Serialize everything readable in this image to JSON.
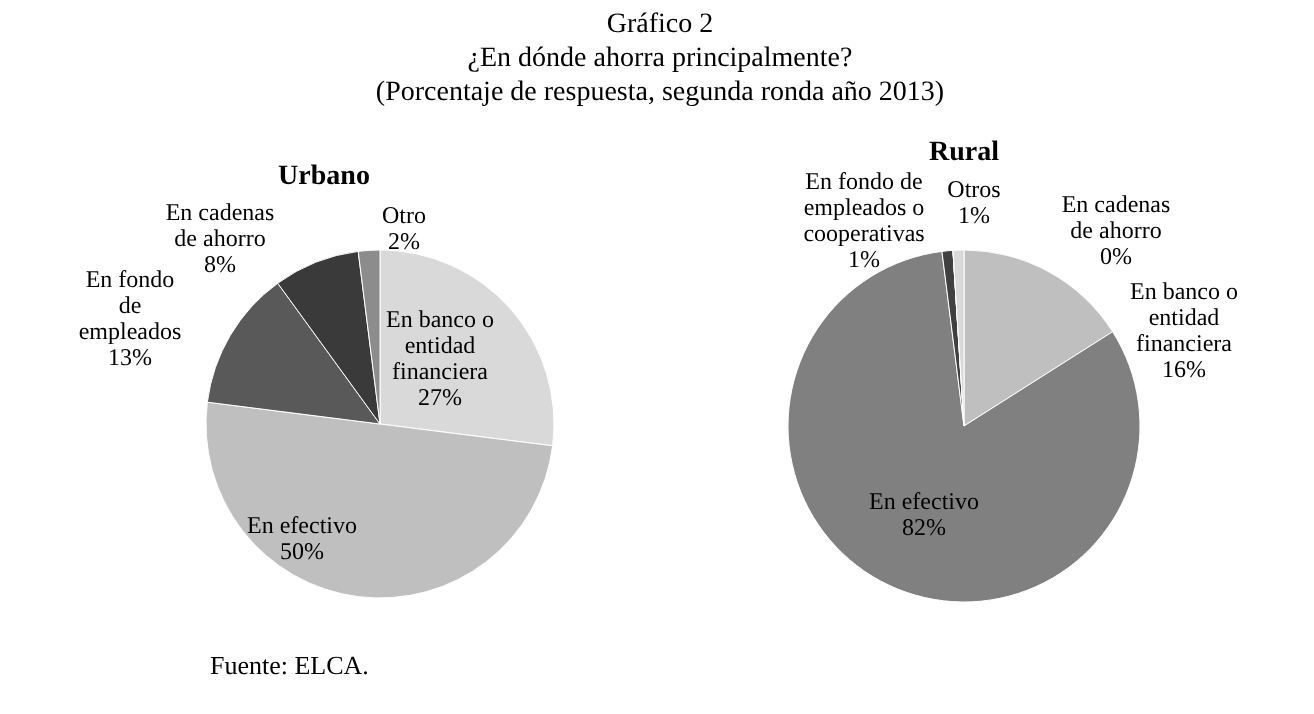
{
  "chart_data": [
    {
      "type": "pie",
      "title": "Urbano",
      "annotations": [
        "Gráfico 2",
        "¿En dónde ahorra principalmente?",
        "(Porcentaje de respuesta, segunda ronda año 2013)",
        "Fuente: ELCA."
      ],
      "categories": [
        "En banco o\nentidad\nfinanciera",
        "En efectivo",
        "En fondo\nde\nempleados",
        "En cadenas\nde ahorro",
        "Otro"
      ],
      "values": [
        27,
        50,
        13,
        8,
        2
      ],
      "value_labels": [
        "27%",
        "50%",
        "13%",
        "8%",
        "2%"
      ],
      "colors": [
        "#d9d9d9",
        "#bfbfbf",
        "#595959",
        "#3a3a3a",
        "#8c8c8c"
      ]
    },
    {
      "type": "pie",
      "title": "Rural",
      "categories": [
        "En banco o\nentidad\nfinanciera",
        "En efectivo",
        "En fondo de\nempleados o\ncooperativas",
        "En cadenas\nde ahorro",
        "Otros"
      ],
      "values": [
        16,
        82,
        1,
        0,
        1
      ],
      "value_labels": [
        "16%",
        "82%",
        "1%",
        "0%",
        "1%"
      ],
      "colors": [
        "#bfbfbf",
        "#808080",
        "#404040",
        "#000000",
        "#d9d9d9"
      ]
    }
  ]
}
